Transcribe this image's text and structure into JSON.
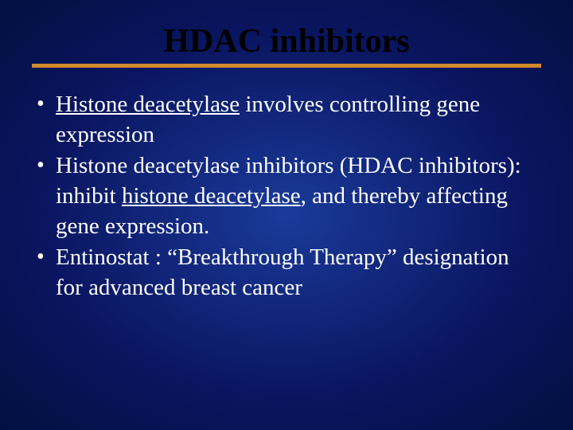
{
  "slide": {
    "title": "HDAC inhibitors",
    "background_gradient": {
      "center": "#1a3a9a",
      "mid": "#0a1560",
      "outer": "#021040"
    },
    "divider_color": "#d28a2e",
    "title_color": "#000000",
    "text_color": "#ffffff",
    "title_fontsize": 42,
    "body_fontsize": 29,
    "bullets": [
      {
        "segments": [
          {
            "text": "Histone deacetylase",
            "underline": true
          },
          {
            "text": " involves controlling gene expression",
            "underline": false
          }
        ]
      },
      {
        "segments": [
          {
            "text": "Histone deacetylase inhibitors (HDAC inhibitors): inhibit ",
            "underline": false
          },
          {
            "text": "histone deacetylase",
            "underline": true
          },
          {
            "text": ", and thereby affecting gene expression.",
            "underline": false
          }
        ]
      },
      {
        "segments": [
          {
            "text": "Entinostat : “Breakthrough Therapy” designation for advanced breast cancer",
            "underline": false
          }
        ]
      }
    ]
  }
}
